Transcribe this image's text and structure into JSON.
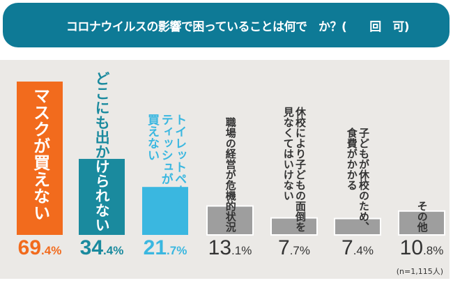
{
  "title": "新型コロナウイルスの影響で困っていることは何ですか？（複数回答可）",
  "title_visible": "　　コロナウイルスの影響で困っていることは何で　か？(　　回　可)",
  "note": "(n=1,115人)",
  "chart_data": {
    "type": "bar",
    "title": "",
    "categories": [
      "マスクが買えない",
      "どこにも出かけられない",
      "トイレットペーパーや\nティッシュが\n買えない",
      "職場の経営が危機的状況",
      "休校により子どもの面倒を\n見なくてはいけない",
      "子どもが休校のため、\n食費がかかる",
      "その他"
    ],
    "values": [
      69.4,
      34.4,
      21.7,
      13.1,
      7.7,
      7.4,
      10.8
    ],
    "value_labels": [
      "69.4%",
      "34.4%",
      "21.7%",
      "13.1%",
      "7.7%",
      "7.4%",
      "10.8%"
    ],
    "colors": [
      "#f26b1d",
      "#1a8a9e",
      "#3ab7e0",
      "#9e9e9e",
      "#9e9e9e",
      "#9e9e9e",
      "#9e9e9e"
    ],
    "label_colors": [
      "#ffffff",
      "#ffffff",
      "#3ab7e0",
      "#333333",
      "#333333",
      "#333333",
      "#333333"
    ],
    "pct_colors": [
      "#f26b1d",
      "#1a8a9e",
      "#3ab7e0",
      "#333333",
      "#333333",
      "#333333",
      "#333333"
    ],
    "ylim": [
      0,
      70
    ],
    "grid": false,
    "unit": "%"
  }
}
